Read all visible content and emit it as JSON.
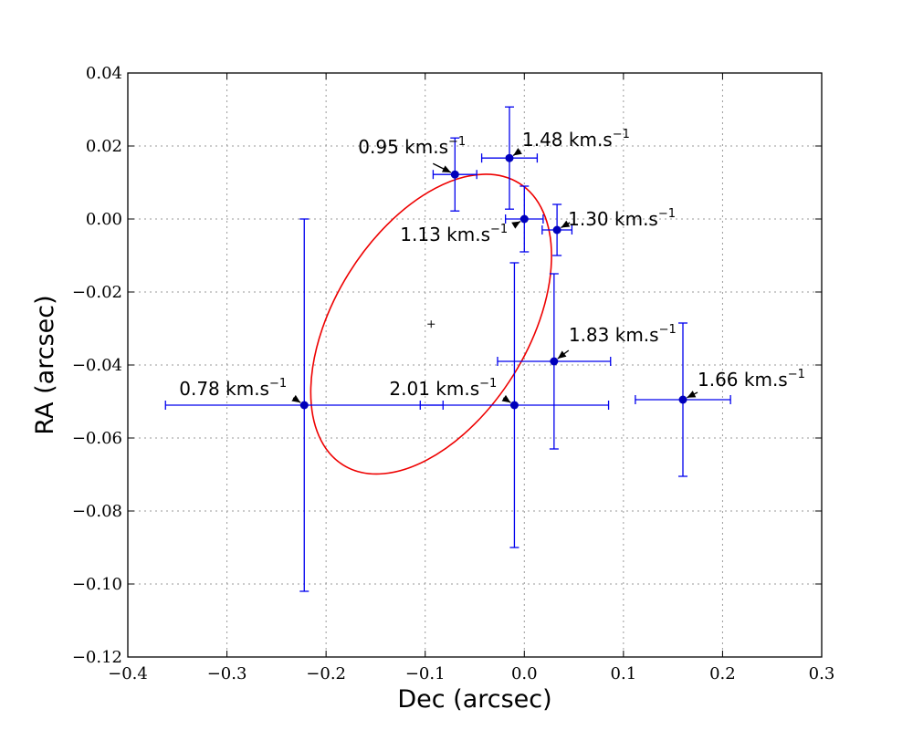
{
  "chart_data": {
    "type": "scatter",
    "xlabel": "Dec (arcsec)",
    "ylabel": "RA (arcsec)",
    "xlim": [
      -0.4,
      0.3
    ],
    "ylim": [
      -0.12,
      0.04
    ],
    "grid": true,
    "x_ticks": [
      -0.4,
      -0.3,
      -0.2,
      -0.1,
      0.0,
      0.1,
      0.2,
      0.3
    ],
    "y_ticks": [
      -0.12,
      -0.1,
      -0.08,
      -0.06,
      -0.04,
      -0.02,
      0.0,
      0.02,
      0.04
    ],
    "x_tick_labels": [
      "−0.4",
      "−0.3",
      "−0.2",
      "−0.1",
      "0.0",
      "0.1",
      "0.2",
      "0.3"
    ],
    "y_tick_labels": [
      "−0.12",
      "−0.10",
      "−0.08",
      "−0.06",
      "−0.04",
      "−0.02",
      "0.00",
      "0.02",
      "0.04"
    ],
    "points": [
      {
        "x": -0.07,
        "y": 0.0122,
        "xerr": 0.022,
        "yerr": 0.01,
        "label": "0.95 km.s",
        "sup": "−1"
      },
      {
        "x": -0.015,
        "y": 0.0167,
        "xerr": 0.028,
        "yerr": 0.014,
        "label": "1.48 km.s",
        "sup": "−1"
      },
      {
        "x": 0.0,
        "y": 0.0,
        "xerr": 0.019,
        "yerr": 0.009,
        "label": "1.13 km.s",
        "sup": "−1"
      },
      {
        "x": 0.033,
        "y": -0.003,
        "xerr": 0.015,
        "yerr": 0.007,
        "label": "1.30 km.s",
        "sup": "−1"
      },
      {
        "x": 0.03,
        "y": -0.039,
        "xerr": 0.057,
        "yerr": 0.024,
        "label": "1.83 km.s",
        "sup": "−1"
      },
      {
        "x": 0.16,
        "y": -0.0495,
        "xerr": 0.048,
        "yerr": 0.021,
        "label": "1.66 km.s",
        "sup": "−1"
      },
      {
        "x": -0.222,
        "y": -0.051,
        "xerr": 0.14,
        "yerr": 0.051,
        "label": "0.78 km.s",
        "sup": "−1"
      },
      {
        "x": -0.01,
        "y": -0.051,
        "xerr": 0.095,
        "yerr": 0.039,
        "label": "2.01 km.s",
        "sup": "−1"
      }
    ],
    "fitted_ellipse": {
      "center_x": -0.094,
      "center_y": -0.0288,
      "color": "#ee0000"
    },
    "colors": {
      "points": "#0000bb",
      "errorbars": "#0000ee",
      "ellipse": "#ee0000"
    }
  }
}
